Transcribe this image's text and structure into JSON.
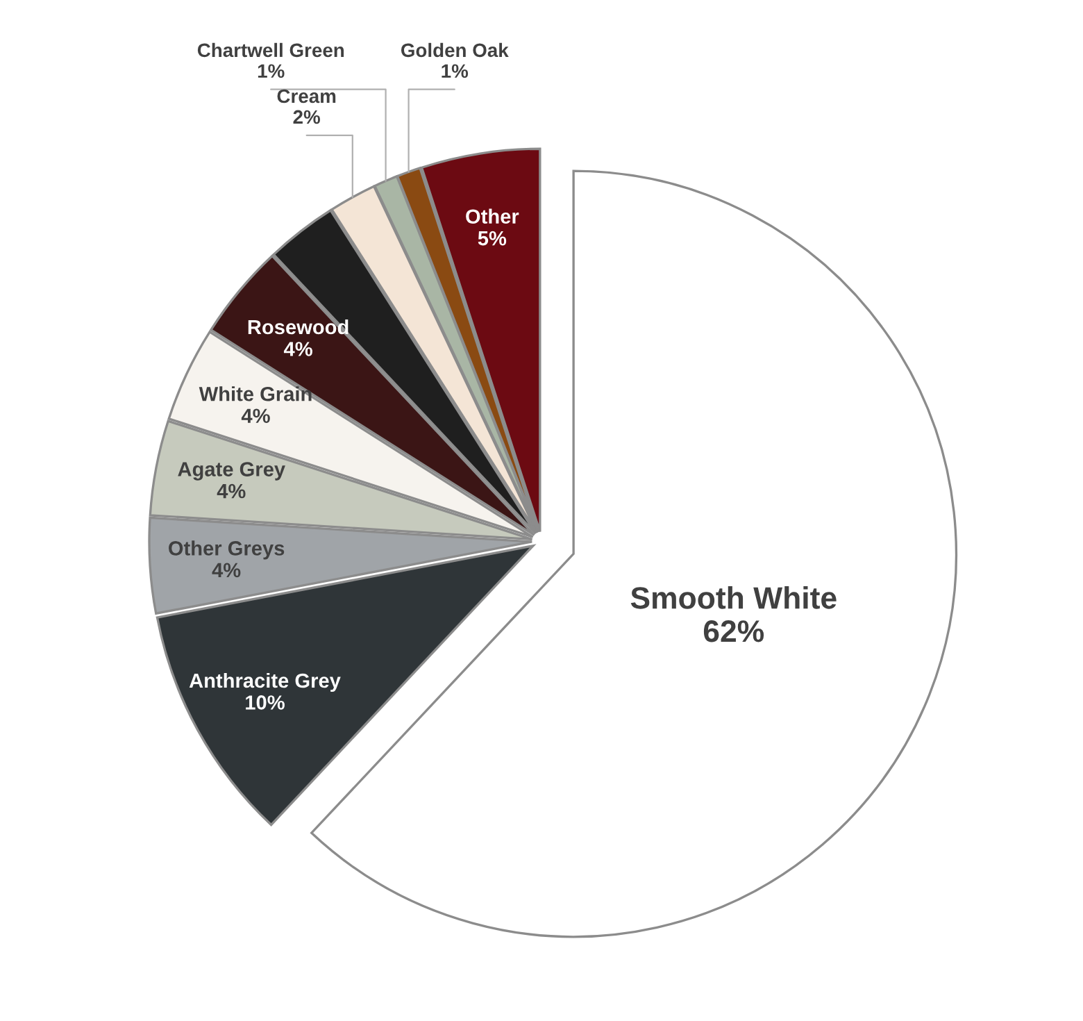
{
  "chart_data": {
    "type": "pie",
    "categories": [
      "Smooth White",
      "Anthracite Grey",
      "Other Greys",
      "Agate Grey",
      "White Grain",
      "Rosewood",
      null,
      "Cream",
      "Chartwell Green",
      "Golden Oak",
      "Other"
    ],
    "values": [
      62,
      10,
      4,
      4,
      4,
      4,
      3,
      2,
      1,
      1,
      5
    ],
    "value_labels": [
      "62%",
      "10%",
      "4%",
      "4%",
      "4%",
      "4%",
      null,
      "2%",
      "1%",
      "1%",
      "5%"
    ],
    "colors": [
      "#ffffff",
      "#2f3538",
      "#a0a4a8",
      "#c6cabd",
      "#f6f3ee",
      "#3b1515",
      "#1f1f1f",
      "#f4e5d6",
      "#a9b6a5",
      "#8a4a12",
      "#6c0a12"
    ],
    "legend": false
  }
}
